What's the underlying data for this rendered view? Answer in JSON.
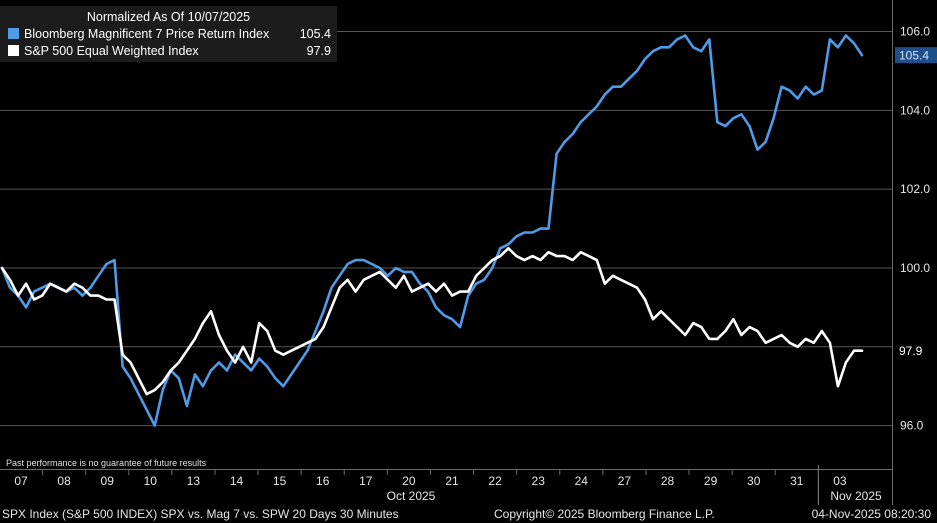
{
  "legend": {
    "title": "Normalized As Of 10/07/2025",
    "items": [
      {
        "name": "Bloomberg Magnificent 7 Price Return Index",
        "value": "105.4",
        "color": "#4f9be8"
      },
      {
        "name": "S&P 500 Equal Weighted Index",
        "value": "97.9",
        "color": "#ffffff"
      }
    ]
  },
  "disclaimer": "Past performance is no guarantee of future results",
  "footer": {
    "left": "SPX Index (S&P 500 INDEX) SPX vs. Mag 7 vs. SPW 20 Days 30 Minutes",
    "middle": "Copyright© 2025 Bloomberg Finance L.P.",
    "right": "04-Nov-2025 08:20:30"
  },
  "chart_data": {
    "type": "line",
    "x_labels": [
      "07",
      "08",
      "09",
      "10",
      "13",
      "14",
      "15",
      "16",
      "17",
      "20",
      "21",
      "22",
      "23",
      "24",
      "27",
      "28",
      "29",
      "30",
      "31",
      "03"
    ],
    "month_labels": [
      "Oct 2025",
      "Nov 2025"
    ],
    "yticks": [
      "96.0",
      "98.0",
      "100.0",
      "102.0",
      "104.0",
      "106.0"
    ],
    "ylim": [
      95.0,
      106.8
    ],
    "grid": true,
    "legend_position": "top-left",
    "series": [
      {
        "name": "Bloomberg Magnificent 7 Price Return Index",
        "color": "#4f9be8",
        "last_label": "105.4",
        "values": [
          100.0,
          99.5,
          99.3,
          99.0,
          99.4,
          99.5,
          99.6,
          99.5,
          99.4,
          99.5,
          99.3,
          99.5,
          99.8,
          100.1,
          100.2,
          97.5,
          97.2,
          96.8,
          96.4,
          96.0,
          96.9,
          97.4,
          97.2,
          96.5,
          97.3,
          97.0,
          97.4,
          97.6,
          97.4,
          97.8,
          97.6,
          97.4,
          97.7,
          97.5,
          97.2,
          97.0,
          97.3,
          97.6,
          97.9,
          98.4,
          98.9,
          99.5,
          99.8,
          100.1,
          100.2,
          100.2,
          100.1,
          100.0,
          99.8,
          100.0,
          99.9,
          99.9,
          99.6,
          99.4,
          99.0,
          98.8,
          98.7,
          98.5,
          99.3,
          99.6,
          99.7,
          100.0,
          100.5,
          100.6,
          100.8,
          100.9,
          100.9,
          101.0,
          101.0,
          102.9,
          103.2,
          103.4,
          103.7,
          103.9,
          104.1,
          104.4,
          104.6,
          104.6,
          104.8,
          105.0,
          105.3,
          105.5,
          105.6,
          105.6,
          105.8,
          105.9,
          105.6,
          105.5,
          105.8,
          103.7,
          103.6,
          103.8,
          103.9,
          103.6,
          103.0,
          103.2,
          103.8,
          104.6,
          104.5,
          104.3,
          104.6,
          104.4,
          104.5,
          105.8,
          105.6,
          105.9,
          105.7,
          105.4
        ]
      },
      {
        "name": "S&P 500 Equal Weighted Index",
        "color": "#ffffff",
        "last_label": "97.9",
        "values": [
          100.0,
          99.7,
          99.3,
          99.6,
          99.2,
          99.3,
          99.6,
          99.5,
          99.4,
          99.6,
          99.5,
          99.3,
          99.3,
          99.2,
          99.2,
          97.8,
          97.6,
          97.2,
          96.8,
          96.9,
          97.1,
          97.4,
          97.6,
          97.9,
          98.2,
          98.6,
          98.9,
          98.3,
          97.9,
          97.6,
          98.0,
          97.6,
          98.6,
          98.4,
          97.9,
          97.8,
          97.9,
          98.0,
          98.1,
          98.2,
          98.5,
          99.0,
          99.5,
          99.7,
          99.4,
          99.7,
          99.8,
          99.9,
          99.7,
          99.5,
          99.8,
          99.4,
          99.5,
          99.6,
          99.4,
          99.6,
          99.3,
          99.4,
          99.4,
          99.8,
          100.0,
          100.2,
          100.3,
          100.5,
          100.3,
          100.2,
          100.3,
          100.2,
          100.4,
          100.3,
          100.3,
          100.2,
          100.4,
          100.3,
          100.2,
          99.6,
          99.8,
          99.7,
          99.6,
          99.5,
          99.2,
          98.7,
          98.9,
          98.7,
          98.5,
          98.3,
          98.6,
          98.5,
          98.2,
          98.2,
          98.4,
          98.7,
          98.3,
          98.5,
          98.4,
          98.1,
          98.2,
          98.3,
          98.1,
          98.0,
          98.2,
          98.1,
          98.4,
          98.1,
          97.0,
          97.6,
          97.9,
          97.9
        ]
      }
    ]
  }
}
